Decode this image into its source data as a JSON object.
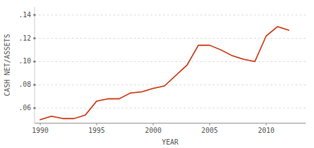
{
  "chart_data": {
    "type": "line",
    "xlabel": "YEAR",
    "ylabel": "CASH NET/ASSETS",
    "x": [
      1990,
      1991,
      1992,
      1993,
      1994,
      1995,
      1996,
      1997,
      1998,
      1999,
      2000,
      2001,
      2002,
      2003,
      2004,
      2005,
      2006,
      2007,
      2008,
      2009,
      2010,
      2011,
      2012
    ],
    "values": [
      0.05,
      0.053,
      0.051,
      0.051,
      0.054,
      0.066,
      0.068,
      0.068,
      0.073,
      0.074,
      0.077,
      0.079,
      0.088,
      0.097,
      0.114,
      0.114,
      0.11,
      0.105,
      0.102,
      0.1,
      0.122,
      0.13,
      0.127
    ],
    "color": "#cc4422",
    "xlim": [
      1989.5,
      2013.5
    ],
    "ylim": [
      0.047,
      0.147
    ],
    "xticks": [
      1990,
      1995,
      2000,
      2005,
      2010
    ],
    "yticks": [
      {
        "value": 0.06,
        "label": ".06"
      },
      {
        "value": 0.08,
        "label": ".08"
      },
      {
        "value": 0.1,
        "label": ".10"
      },
      {
        "value": 0.12,
        "label": ".12"
      },
      {
        "value": 0.14,
        "label": ".14"
      }
    ],
    "grid": true
  }
}
